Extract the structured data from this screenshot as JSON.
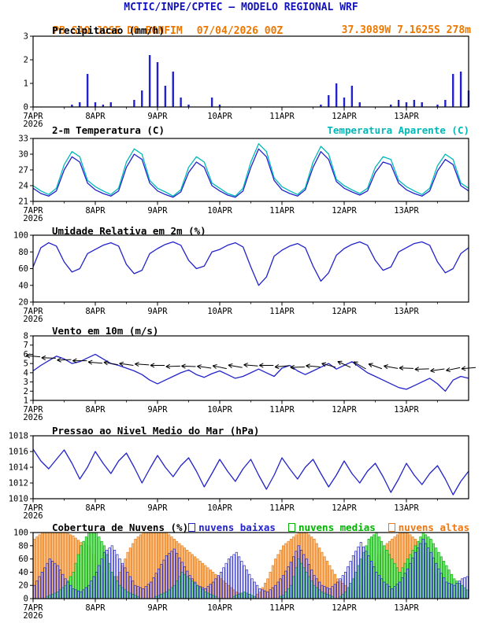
{
  "header": {
    "title": "MCTIC/INPE/CPTEC — MODELO REGIONAL WRF",
    "station": "PB SAO JOSE DO BONFIM",
    "run": "07/04/2026 00Z",
    "coords": "37.3089W 7.1625S 278m"
  },
  "colors": {
    "header_blue": "#1212bb",
    "orange": "#ee7700",
    "blue": "#2222cc",
    "cyan": "#00b8b8",
    "green": "#00b400",
    "black": "#000000"
  },
  "xaxis": {
    "total_hours": 168,
    "step_hours": 3,
    "ticks": [
      {
        "t": 0,
        "label": "7APR",
        "sublabel": "2026"
      },
      {
        "t": 24,
        "label": "8APR"
      },
      {
        "t": 48,
        "label": "9APR"
      },
      {
        "t": 72,
        "label": "10APR"
      },
      {
        "t": 96,
        "label": "11APR"
      },
      {
        "t": 120,
        "label": "12APR"
      },
      {
        "t": 144,
        "label": "13APR"
      }
    ]
  },
  "chart_data": [
    {
      "key": "precip",
      "type": "bar",
      "title": "Precipitacao (mm/h)",
      "ylim": [
        0,
        3
      ],
      "yticks": [
        0,
        1,
        2,
        3
      ],
      "step_hours": 3,
      "color": "#2222cc",
      "values": [
        0,
        0,
        0,
        0,
        0,
        0.1,
        0.2,
        1.4,
        0.2,
        0.1,
        0.2,
        0,
        0,
        0.3,
        0.7,
        2.2,
        1.9,
        0.9,
        1.5,
        0.4,
        0.1,
        0,
        0,
        0.4,
        0.1,
        0,
        0,
        0,
        0,
        0,
        0,
        0,
        0,
        0,
        0,
        0,
        0,
        0.1,
        0.5,
        1.0,
        0.4,
        0.9,
        0.2,
        0,
        0,
        0,
        0.1,
        0.3,
        0.2,
        0.3,
        0.2,
        0,
        0.1,
        0.3,
        1.4,
        1.5,
        0.7
      ]
    },
    {
      "key": "temp",
      "type": "line",
      "title": "2-m Temperatura (C)",
      "legend_label": "Temperatura Aparente (C)",
      "ylim": [
        21,
        33
      ],
      "yticks": [
        21,
        24,
        27,
        30,
        33
      ],
      "step_hours": 3,
      "series": [
        {
          "name": "2-m Temperatura (C)",
          "color": "#2222cc",
          "values": [
            23.5,
            22.5,
            22.0,
            23.0,
            27.0,
            29.5,
            28.5,
            24.5,
            23.2,
            22.5,
            22.0,
            23.0,
            27.5,
            30.0,
            29.0,
            24.5,
            23.0,
            22.3,
            21.8,
            22.8,
            26.5,
            28.5,
            27.5,
            24.0,
            23.0,
            22.2,
            21.8,
            23.0,
            27.5,
            31.0,
            29.5,
            25.0,
            23.2,
            22.5,
            22.0,
            23.2,
            27.5,
            30.5,
            29.0,
            24.8,
            23.5,
            22.8,
            22.2,
            23.0,
            26.5,
            28.5,
            28.0,
            24.5,
            23.2,
            22.5,
            22.0,
            23.0,
            26.8,
            29.0,
            28.0,
            24.0,
            23.0
          ]
        },
        {
          "name": "Temperatura Aparente (C)",
          "color": "#00b8b8",
          "values": [
            24.0,
            23.0,
            22.3,
            23.5,
            28.0,
            30.5,
            29.5,
            25.0,
            23.8,
            23.0,
            22.3,
            23.5,
            28.5,
            31.0,
            30.0,
            25.0,
            23.5,
            22.8,
            22.0,
            23.2,
            27.5,
            29.5,
            28.5,
            24.5,
            23.5,
            22.5,
            22.0,
            23.5,
            28.5,
            32.0,
            30.5,
            25.5,
            23.8,
            23.0,
            22.3,
            23.6,
            28.5,
            31.5,
            30.0,
            25.2,
            24.0,
            23.2,
            22.5,
            23.5,
            27.5,
            29.5,
            29.0,
            25.0,
            23.8,
            23.0,
            22.3,
            23.5,
            27.8,
            30.0,
            29.0,
            24.5,
            23.5
          ]
        }
      ]
    },
    {
      "key": "rh",
      "type": "line",
      "title": "Umidade Relativa em 2m (%)",
      "ylim": [
        20,
        100
      ],
      "yticks": [
        20,
        40,
        60,
        80,
        100
      ],
      "step_hours": 3,
      "series": [
        {
          "name": "Umidade Relativa em 2m",
          "color": "#2222cc",
          "values": [
            62,
            85,
            91,
            87,
            68,
            56,
            60,
            78,
            83,
            88,
            91,
            87,
            65,
            54,
            58,
            78,
            84,
            89,
            92,
            88,
            70,
            60,
            63,
            80,
            83,
            88,
            91,
            86,
            62,
            40,
            50,
            75,
            82,
            87,
            90,
            85,
            63,
            45,
            55,
            76,
            84,
            89,
            92,
            88,
            70,
            58,
            62,
            80,
            85,
            90,
            92,
            88,
            68,
            55,
            60,
            78,
            85
          ]
        }
      ]
    },
    {
      "key": "wind",
      "type": "line",
      "title": "Vento em 10m (m/s)",
      "ylim": [
        1,
        8
      ],
      "yticks": [
        1,
        2,
        3,
        4,
        5,
        6,
        7,
        8
      ],
      "step_hours": 3,
      "series": [
        {
          "name": "Velocidade do vento em 10m",
          "color": "#2222cc",
          "values": [
            4.2,
            4.8,
            5.3,
            5.8,
            5.5,
            5.0,
            5.2,
            5.6,
            6.0,
            5.5,
            5.0,
            4.8,
            4.5,
            4.2,
            3.8,
            3.2,
            2.8,
            3.2,
            3.6,
            4.0,
            4.3,
            3.8,
            3.5,
            3.9,
            4.2,
            3.8,
            3.4,
            3.6,
            4.0,
            4.4,
            4.0,
            3.6,
            4.5,
            4.8,
            4.2,
            3.8,
            4.2,
            4.6,
            5.0,
            4.4,
            4.8,
            5.2,
            4.6,
            4.0,
            3.6,
            3.2,
            2.8,
            2.4,
            2.2,
            2.6,
            3.0,
            3.4,
            2.8,
            2.0,
            3.2,
            3.6,
            3.4
          ]
        }
      ],
      "barbs": {
        "step_hours": 6,
        "color": "#000000",
        "angles_deg": [
          185,
          182,
          178,
          180,
          185,
          190,
          188,
          184,
          180,
          178,
          182,
          188,
          192,
          190,
          185,
          180,
          175,
          178,
          185,
          195,
          205,
          210,
          200,
          190,
          182,
          178,
          172,
          168,
          175
        ],
        "y_values": [
          5.8,
          5.6,
          5.4,
          5.3,
          5.1,
          5.0,
          4.9,
          4.9,
          4.8,
          4.7,
          4.7,
          4.6,
          4.6,
          4.7,
          4.8,
          4.8,
          4.7,
          4.6,
          4.7,
          4.8,
          4.9,
          4.8,
          4.7,
          4.6,
          4.5,
          4.4,
          4.3,
          4.4,
          4.5
        ]
      }
    },
    {
      "key": "pressure",
      "type": "line",
      "title": "Pressao ao Nivel Medio do Mar (hPa)",
      "ylim": [
        1010,
        1018
      ],
      "yticks": [
        1010,
        1012,
        1014,
        1016,
        1018
      ],
      "step_hours": 3,
      "series": [
        {
          "name": "Pressao ao nivel medio do mar",
          "color": "#2222cc",
          "values": [
            1016.3,
            1014.8,
            1013.8,
            1015.0,
            1016.2,
            1014.5,
            1012.5,
            1014.0,
            1016.0,
            1014.5,
            1013.2,
            1014.8,
            1015.8,
            1014.0,
            1012.0,
            1013.8,
            1015.5,
            1014.0,
            1012.8,
            1014.2,
            1015.2,
            1013.5,
            1011.5,
            1013.2,
            1015.0,
            1013.5,
            1012.2,
            1013.8,
            1015.0,
            1013.0,
            1011.2,
            1013.0,
            1015.2,
            1013.8,
            1012.5,
            1014.0,
            1015.0,
            1013.2,
            1011.5,
            1013.0,
            1014.8,
            1013.2,
            1012.0,
            1013.5,
            1014.5,
            1012.8,
            1010.8,
            1012.5,
            1014.5,
            1013.0,
            1011.8,
            1013.2,
            1014.2,
            1012.5,
            1010.5,
            1012.2,
            1013.5
          ]
        }
      ]
    },
    {
      "key": "clouds",
      "type": "bar",
      "title": "Cobertura de Nuvens (%)",
      "ylim": [
        0,
        100
      ],
      "yticks": [
        0,
        20,
        40,
        60,
        80,
        100
      ],
      "step_hours": 3,
      "series": [
        {
          "name": "nuvens baixas",
          "color": "#2222cc",
          "fill": "none",
          "values": [
            20,
            40,
            60,
            50,
            30,
            15,
            10,
            20,
            40,
            70,
            80,
            60,
            40,
            20,
            15,
            25,
            45,
            65,
            75,
            55,
            35,
            20,
            15,
            25,
            40,
            60,
            70,
            50,
            30,
            15,
            10,
            20,
            35,
            55,
            80,
            60,
            35,
            20,
            15,
            25,
            40,
            65,
            85,
            65,
            40,
            25,
            15,
            25,
            45,
            70,
            90,
            70,
            45,
            25,
            20,
            30,
            35
          ]
        },
        {
          "name": "nuvens medias",
          "color": "#00b400",
          "fill": "#90e890",
          "values": [
            0,
            0,
            5,
            10,
            20,
            40,
            80,
            100,
            100,
            80,
            40,
            20,
            10,
            5,
            0,
            0,
            5,
            10,
            20,
            40,
            30,
            20,
            10,
            5,
            0,
            0,
            5,
            10,
            5,
            0,
            0,
            0,
            5,
            20,
            60,
            40,
            20,
            10,
            5,
            0,
            10,
            30,
            60,
            90,
            100,
            80,
            60,
            40,
            60,
            80,
            100,
            90,
            70,
            50,
            30,
            20,
            10
          ]
        },
        {
          "name": "nuvens altas",
          "color": "#ee7711",
          "fill": "#f8c98e",
          "values": [
            90,
            100,
            100,
            100,
            100,
            95,
            85,
            80,
            60,
            30,
            20,
            40,
            70,
            90,
            100,
            100,
            100,
            100,
            90,
            80,
            70,
            60,
            50,
            40,
            30,
            20,
            10,
            5,
            0,
            10,
            30,
            60,
            80,
            90,
            100,
            100,
            90,
            70,
            50,
            30,
            20,
            10,
            20,
            40,
            60,
            80,
            90,
            100,
            100,
            90,
            70,
            50,
            30,
            20,
            10,
            5,
            0
          ]
        }
      ]
    }
  ]
}
